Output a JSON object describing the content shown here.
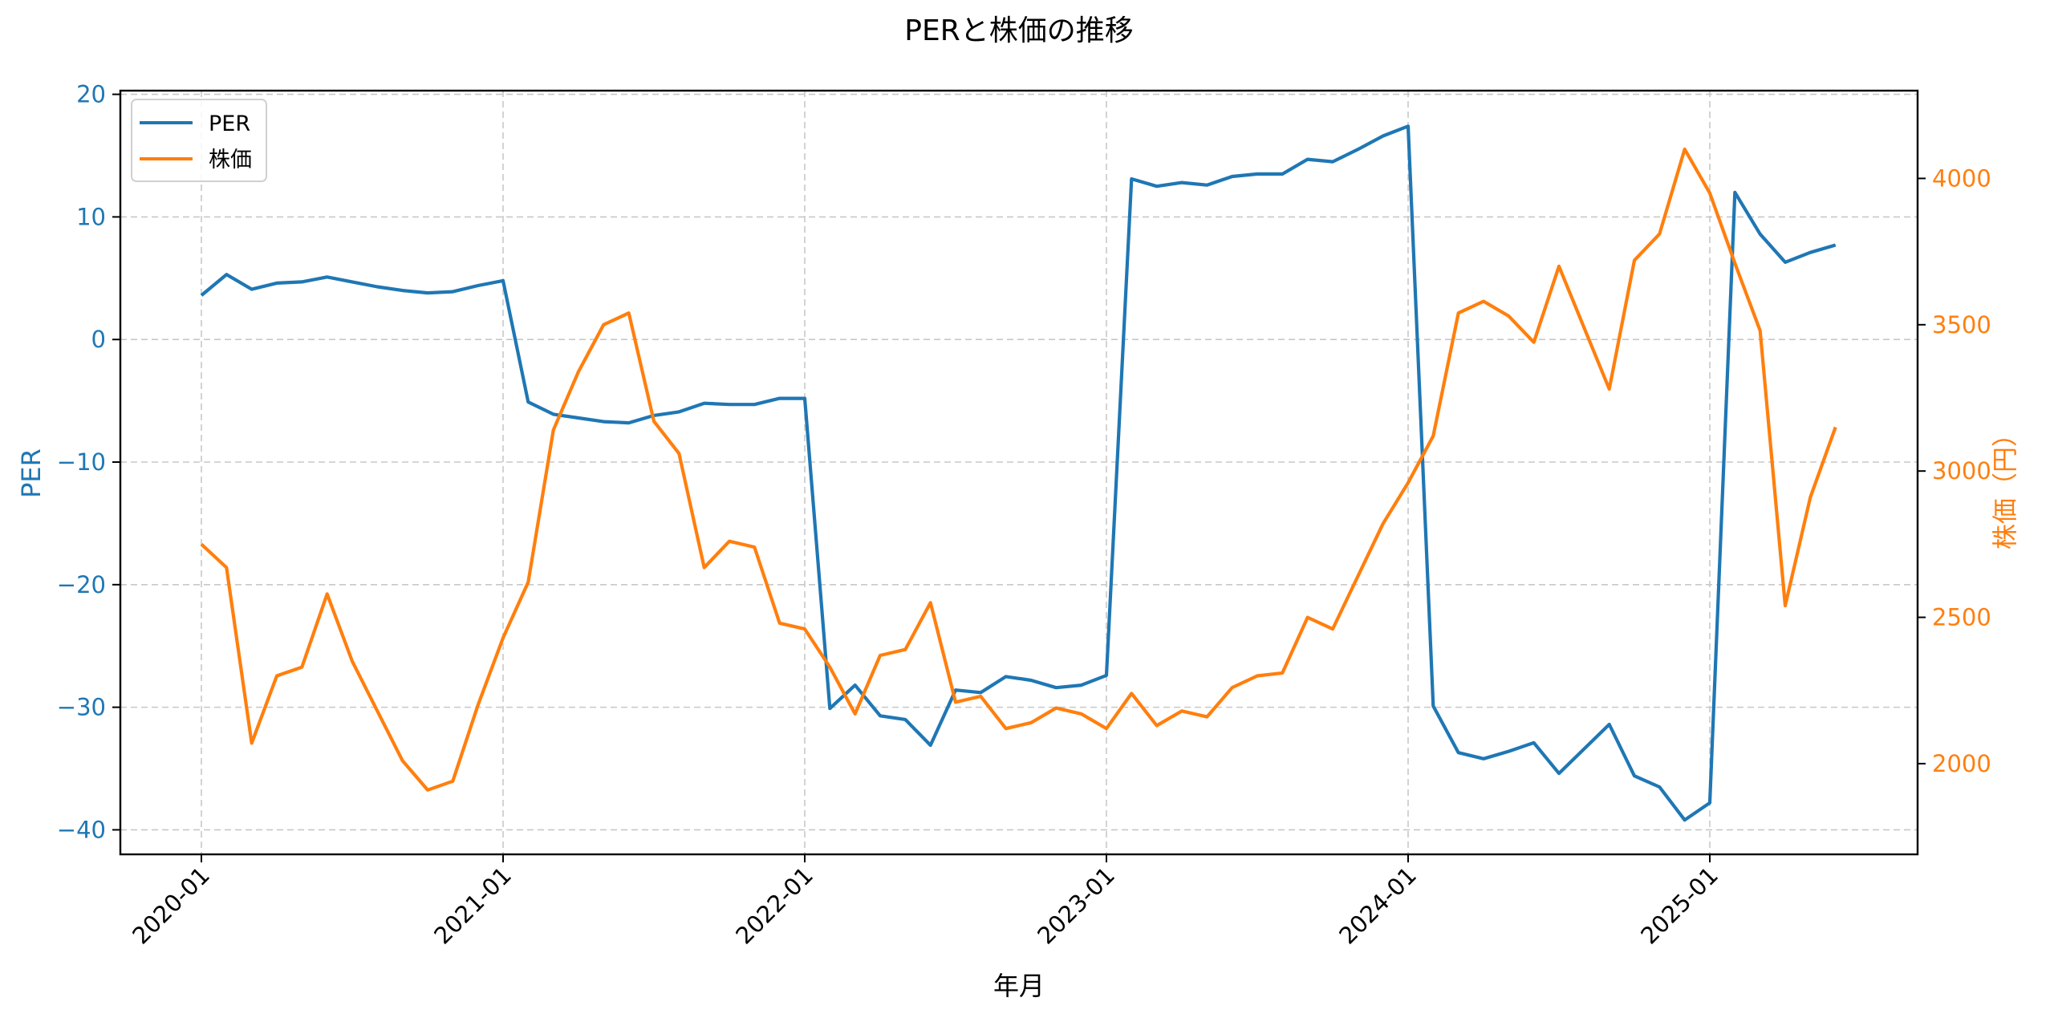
{
  "chart_data": {
    "type": "line",
    "title": "PERと株価の推移",
    "xlabel": "年月",
    "ylabel_left": "PER",
    "ylabel_right": "株価（円）",
    "ylim_left": [
      -42,
      20.3
    ],
    "ylim_right": [
      1690,
      4300
    ],
    "yticks_left": [
      20,
      10,
      0,
      -10,
      -20,
      -30,
      -40
    ],
    "ytick_labels_left": [
      "20",
      "10",
      "0",
      "−10",
      "−20",
      "−30",
      "−40"
    ],
    "yticks_right": [
      4000,
      3500,
      3000,
      2500,
      2000
    ],
    "xtick_labels": [
      "2020-01",
      "2021-01",
      "2022-01",
      "2023-01",
      "2024-01",
      "2025-01"
    ],
    "xtick_month_index": [
      0,
      12,
      24,
      36,
      48,
      60
    ],
    "grid": true,
    "legend_position": "upper left",
    "x": [
      "2020-01",
      "2020-02",
      "2020-03",
      "2020-04",
      "2020-05",
      "2020-06",
      "2020-07",
      "2020-08",
      "2020-09",
      "2020-10",
      "2020-11",
      "2020-12",
      "2021-01",
      "2021-02",
      "2021-03",
      "2021-04",
      "2021-05",
      "2021-06",
      "2021-07",
      "2021-08",
      "2021-09",
      "2021-10",
      "2021-11",
      "2021-12",
      "2022-01",
      "2022-02",
      "2022-03",
      "2022-04",
      "2022-05",
      "2022-06",
      "2022-07",
      "2022-08",
      "2022-09",
      "2022-10",
      "2022-11",
      "2022-12",
      "2023-01",
      "2023-02",
      "2023-03",
      "2023-04",
      "2023-05",
      "2023-06",
      "2023-07",
      "2023-08",
      "2023-09",
      "2023-10",
      "2023-11",
      "2023-12",
      "2024-01",
      "2024-02",
      "2024-03",
      "2024-04",
      "2024-05",
      "2024-06",
      "2024-07",
      "2024-08",
      "2024-09",
      "2024-10",
      "2024-11",
      "2024-12",
      "2025-01",
      "2025-02",
      "2025-03",
      "2025-04",
      "2025-05",
      "2025-06"
    ],
    "series": [
      {
        "name": "PER",
        "axis": "left",
        "color": "#1f77b4",
        "values": [
          3.6,
          5.3,
          4.1,
          4.6,
          4.7,
          5.1,
          4.7,
          4.3,
          4.0,
          3.8,
          3.9,
          4.4,
          4.8,
          -5.1,
          -6.1,
          -6.4,
          -6.7,
          -6.8,
          -6.2,
          -5.9,
          -5.2,
          -5.3,
          -5.3,
          -4.8,
          -4.8,
          -30.1,
          -28.2,
          -30.7,
          -31.0,
          -33.1,
          -28.6,
          -28.8,
          -27.5,
          -27.8,
          -28.4,
          -28.2,
          -27.4,
          13.1,
          12.5,
          12.8,
          12.6,
          13.3,
          13.5,
          13.5,
          14.7,
          14.5,
          15.5,
          16.6,
          17.4,
          -29.9,
          -33.7,
          -34.2,
          -33.6,
          -32.9,
          -35.4,
          -33.4,
          -31.4,
          -35.6,
          -36.5,
          -39.2,
          -37.8,
          12.0,
          8.6,
          6.3,
          7.1,
          7.7
        ]
      },
      {
        "name": "株価",
        "axis": "right",
        "color": "#ff7f0e",
        "values": [
          2750,
          2670,
          2070,
          2300,
          2330,
          2580,
          2350,
          2180,
          2010,
          1910,
          1940,
          2200,
          2430,
          2620,
          3140,
          3340,
          3500,
          3540,
          3170,
          3060,
          2670,
          2760,
          2740,
          2480,
          2460,
          2330,
          2170,
          2370,
          2390,
          2550,
          2210,
          2230,
          2120,
          2140,
          2190,
          2170,
          2120,
          2240,
          2130,
          2180,
          2160,
          2260,
          2300,
          2310,
          2500,
          2460,
          2640,
          2820,
          2960,
          3120,
          3540,
          3580,
          3530,
          3440,
          3700,
          3490,
          3280,
          3720,
          3810,
          4100,
          3950,
          3710,
          3480,
          2540,
          2910,
          3150
        ]
      }
    ]
  },
  "legend": {
    "items": [
      {
        "label": "PER",
        "color": "#1f77b4"
      },
      {
        "label": "株価",
        "color": "#ff7f0e"
      }
    ]
  },
  "colors": {
    "per": "#1f77b4",
    "price": "#ff7f0e",
    "grid": "#c8c8c8",
    "axis": "#000000"
  }
}
